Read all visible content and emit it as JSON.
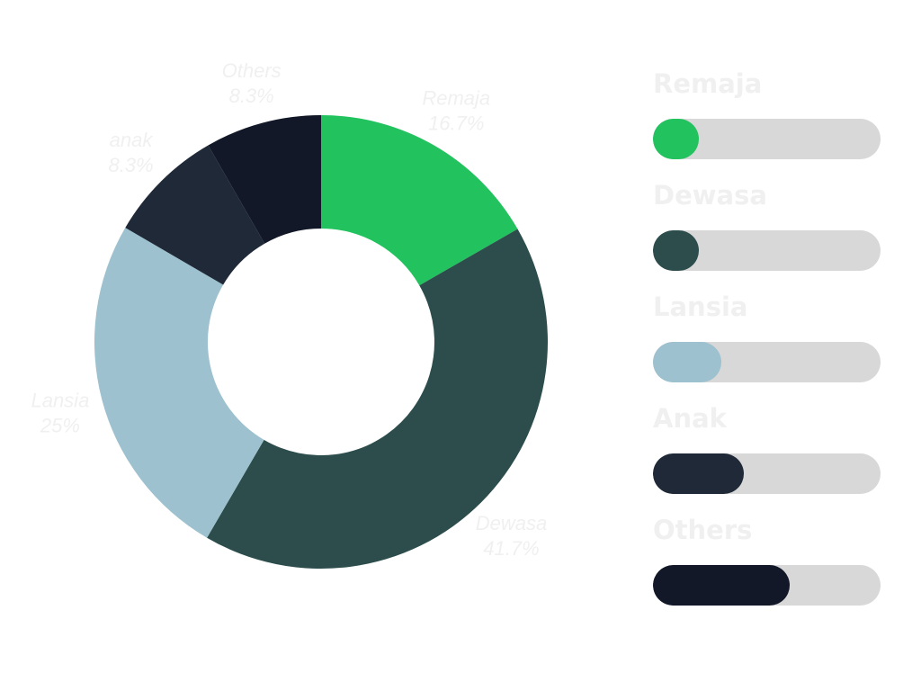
{
  "chart_data": [
    {
      "type": "pie",
      "style": "donut",
      "slices": [
        {
          "label": "Remaja",
          "percent_label": "16.7%",
          "value": 16.7,
          "color": "#22c25e"
        },
        {
          "label": "Dewasa",
          "percent_label": "41.7%",
          "value": 41.7,
          "color": "#2c4d4c"
        },
        {
          "label": "Lansia",
          "percent_label": "25%",
          "value": 25,
          "color": "#9dc1cf"
        },
        {
          "label": "anak",
          "percent_label": "8.3%",
          "value": 8.3,
          "color": "#1f2937"
        },
        {
          "label": "Others",
          "percent_label": "8.3%",
          "value": 8.3,
          "color": "#121827"
        }
      ]
    },
    {
      "type": "bar",
      "orientation": "horizontal",
      "bars": [
        {
          "label": "Remaja",
          "progress": 0.2,
          "color": "#22c25e"
        },
        {
          "label": "Dewasa",
          "progress": 0.2,
          "color": "#2c4d4c"
        },
        {
          "label": "Lansia",
          "progress": 0.3,
          "color": "#9dc1cf"
        },
        {
          "label": "Anak",
          "progress": 0.4,
          "color": "#1f2937"
        },
        {
          "label": "Others",
          "progress": 0.6,
          "color": "#121827"
        }
      ],
      "track_color": "#d8d8d8"
    }
  ]
}
